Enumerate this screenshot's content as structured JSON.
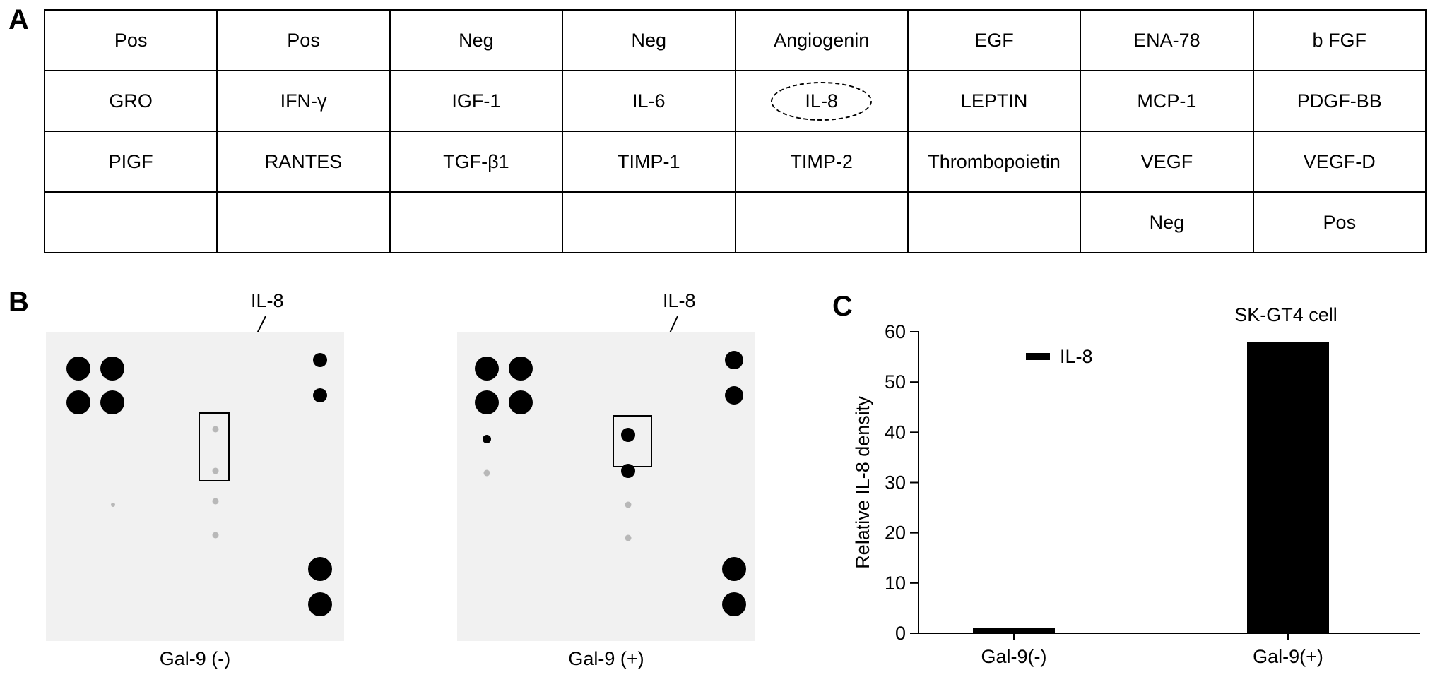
{
  "panel_letters": {
    "a": "A",
    "b": "B",
    "c": "C"
  },
  "array_table": {
    "rows": [
      [
        "Pos",
        "Pos",
        "Neg",
        "Neg",
        "Angiogenin",
        "EGF",
        "ENA-78",
        "b FGF"
      ],
      [
        "GRO",
        "IFN-γ",
        "IGF-1",
        "IL-6",
        "IL-8",
        "LEPTIN",
        "MCP-1",
        "PDGF-BB"
      ],
      [
        "PIGF",
        "RANTES",
        "TGF-β1",
        "TIMP-1",
        "TIMP-2",
        "Thrombopoietin",
        "VEGF",
        "VEGF-D"
      ],
      [
        "",
        "",
        "",
        "",
        "",
        "",
        "Neg",
        "Pos"
      ]
    ],
    "highlighted_cell": "IL-8"
  },
  "blots": {
    "left": {
      "label": "IL-8",
      "caption": "Gal-9 (-)"
    },
    "right": {
      "label": "IL-8",
      "caption": "Gal-9 (+)"
    }
  },
  "chart_data": {
    "type": "bar",
    "title": "SK-GT4 cell",
    "categories": [
      "Gal-9(-)",
      "Gal-9(+)"
    ],
    "series": [
      {
        "name": "IL-8",
        "values": [
          1,
          58
        ]
      }
    ],
    "ylabel": "Relative IL-8 density",
    "xlabel": "",
    "ylim": [
      0,
      60
    ],
    "yticks": [
      0,
      10,
      20,
      30,
      40,
      50,
      60
    ],
    "legend": "top-left",
    "grid": false,
    "bar_color": "#000000"
  }
}
